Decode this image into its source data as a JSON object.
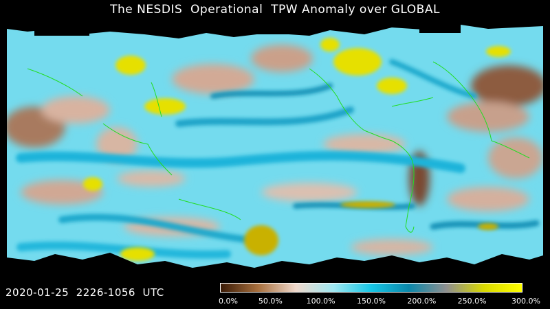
{
  "title": "The NESDIS  Operational  TPW Anomaly over GLOBAL",
  "timestamp": "2020-01-25  2226-1056  UTC",
  "colorbar": {
    "stops": [
      "#3a1a05",
      "#a8703e",
      "#f0d9cc",
      "#9fe8f2",
      "#16c6e6",
      "#0a87aa",
      "#8f8f8f",
      "#d9d900",
      "#ffff00"
    ],
    "ticks": [
      "0.0%",
      "50.0%",
      "100.0%",
      "150.0%",
      "200.0%",
      "250.0%",
      "300.0%"
    ]
  },
  "colors": {
    "ocean_base": "#5fd6ec",
    "dry": "#c9a089",
    "very_dry": "#8a5a3a",
    "moist": "#20b7dc",
    "very_moist": "#1493b8",
    "extreme": "#e6e000",
    "coast": "#22dd22"
  }
}
